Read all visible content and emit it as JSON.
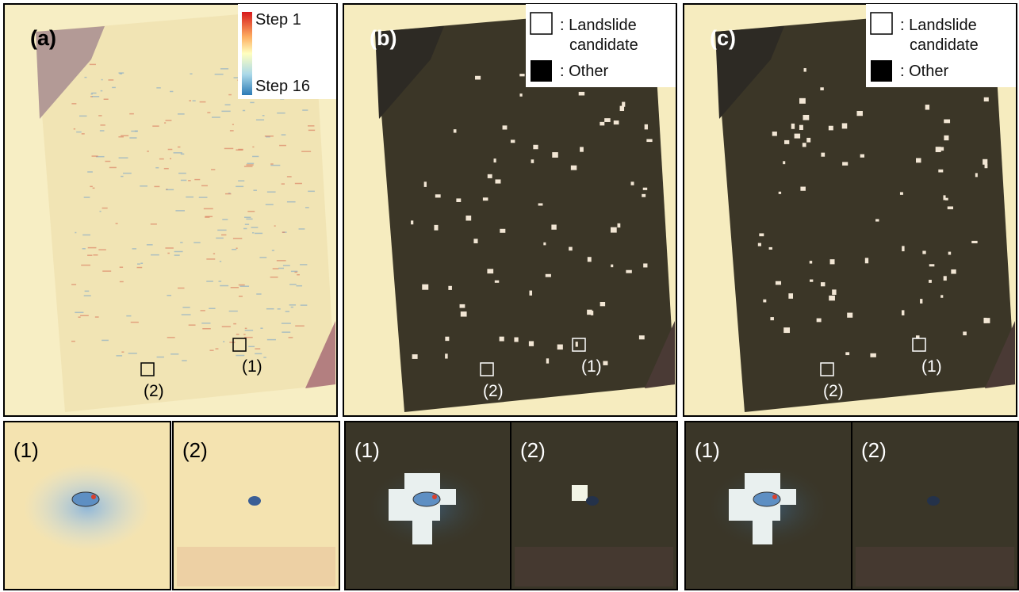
{
  "panels": [
    {
      "label": "(a)",
      "legend": {
        "max_label": "Step 1",
        "min_label": "Step 16"
      },
      "site_labels": [
        "(1)",
        "(2)"
      ],
      "inset_labels": [
        "(1)",
        "(2)"
      ]
    },
    {
      "label": "(b)",
      "legend": {
        "candidate": ": Landslide candidate",
        "other": ": Other"
      },
      "site_labels": [
        "(1)",
        "(2)"
      ],
      "inset_labels": [
        "(1)",
        "(2)"
      ]
    },
    {
      "label": "(c)",
      "legend": {
        "candidate": ": Landslide candidate",
        "other": ": Other"
      },
      "site_labels": [
        "(1)",
        "(2)"
      ],
      "inset_labels": [
        "(1)",
        "(2)"
      ]
    }
  ]
}
